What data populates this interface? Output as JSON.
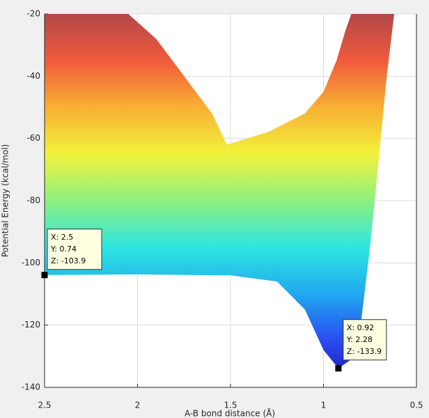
{
  "chart_data": {
    "type": "surface-side",
    "xlabel": "A-B bond distance (Å)",
    "ylabel": "Potential Energy (kcal/mol)",
    "xlim": [
      2.5,
      0.5
    ],
    "xticks": [
      2.5,
      2,
      1.5,
      1,
      0.5
    ],
    "ylim": [
      -140,
      -20
    ],
    "yticks": [
      -140,
      -120,
      -100,
      -80,
      -60,
      -40,
      -20
    ],
    "grid": true,
    "clim": [
      -140,
      -20
    ],
    "colormap": [
      "#1a0fb0",
      "#2a4cf0",
      "#20a8f0",
      "#2ee6e0",
      "#8ef080",
      "#f2f23c",
      "#f8b034",
      "#f05a3c",
      "#b04848"
    ],
    "surface_outline": {
      "x": [
        2.5,
        2.05,
        1.9,
        1.75,
        1.6,
        1.52,
        1.3,
        1.1,
        1.0,
        0.93,
        0.88,
        0.85,
        0.62,
        0.66,
        0.7,
        0.75,
        0.8,
        0.85,
        0.92,
        1.0,
        1.1,
        1.25,
        1.5,
        2.0,
        2.5
      ],
      "y": [
        -20,
        -20,
        -28,
        -40,
        -52,
        -62,
        -58,
        -52,
        -45,
        -35,
        -25,
        -20,
        -20,
        -40,
        -65,
        -95,
        -120,
        -131,
        -133.9,
        -128,
        -115,
        -106,
        -104,
        -103.7,
        -103.9
      ]
    },
    "datatips": [
      {
        "x": 2.5,
        "z": -103.9,
        "lines": [
          "X: 2.5",
          "Y: 0.74",
          "Z: -103.9"
        ]
      },
      {
        "x": 0.92,
        "z": -133.9,
        "lines": [
          "X: 0.92",
          "Y: 2.28",
          "Z: -133.9"
        ]
      }
    ]
  }
}
